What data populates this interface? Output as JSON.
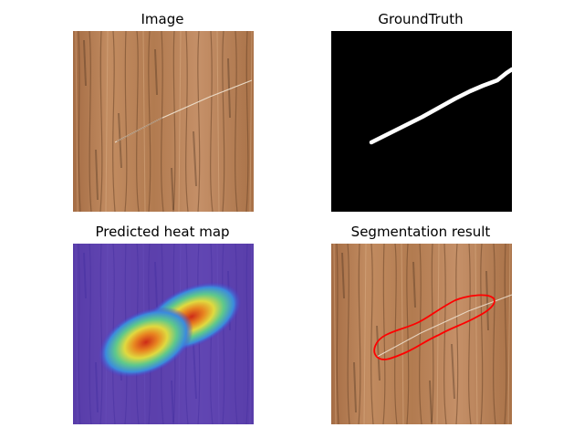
{
  "panels": {
    "image": {
      "title": "Image"
    },
    "ground_truth": {
      "title": "GroundTruth"
    },
    "heat_map": {
      "title": "Predicted heat map"
    },
    "segmentation": {
      "title": "Segmentation result"
    }
  },
  "colors": {
    "wood_base": "#b07a4e",
    "wood_light": "#c8956a",
    "wood_dark": "#5a3a22",
    "mask_background": "#000000",
    "mask_foreground": "#ffffff",
    "heat_cold": "#4b3bd0",
    "heat_hot": "#d42a10",
    "contour": "#ff0000"
  }
}
